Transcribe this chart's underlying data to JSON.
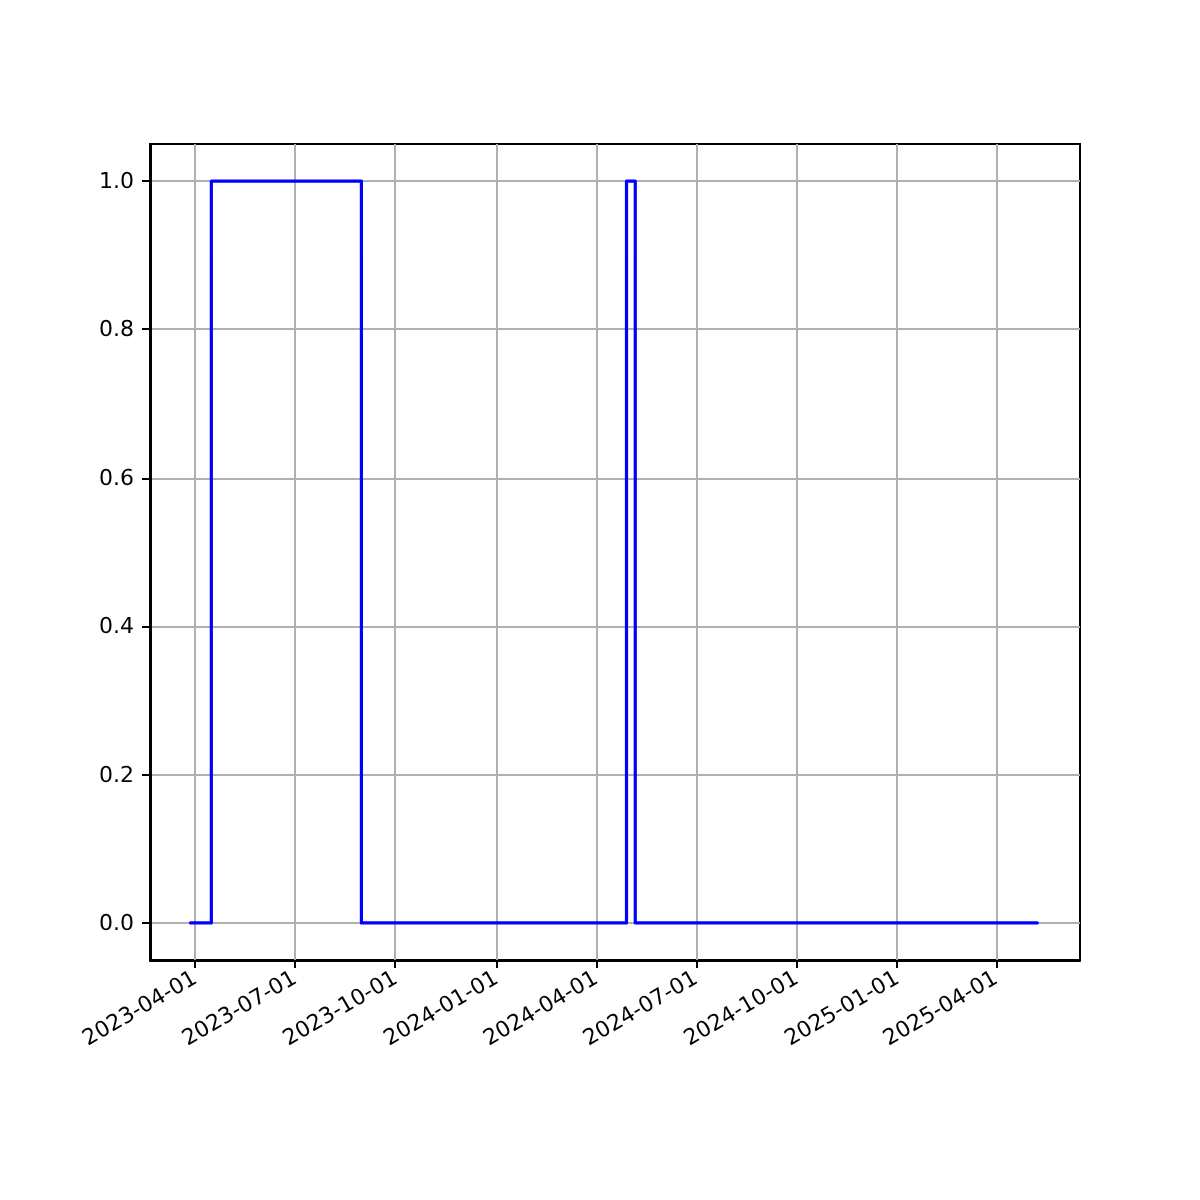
{
  "chart_data": {
    "type": "step",
    "x": [
      "2023-03-28",
      "2023-04-16",
      "2023-08-31",
      "2024-04-29",
      "2024-05-07",
      "2025-05-09"
    ],
    "series": [
      {
        "color": "#0000ff",
        "values": [
          0,
          1,
          0,
          1,
          0,
          0
        ]
      }
    ],
    "xlim": [
      "2023-02-19",
      "2025-06-17"
    ],
    "xticks": [
      "2023-04-01",
      "2023-07-01",
      "2023-10-01",
      "2024-01-01",
      "2024-04-01",
      "2024-07-01",
      "2024-10-01",
      "2025-01-01",
      "2025-04-01"
    ],
    "ylim": [
      -0.05,
      1.05
    ],
    "yticks": [
      {
        "value": 0,
        "label": "0.0"
      },
      0.2,
      0.4,
      0.6,
      0.8,
      {
        "value": 1,
        "label": "1.0"
      }
    ],
    "grid": true,
    "marker": "none",
    "line_style": "solid"
  }
}
